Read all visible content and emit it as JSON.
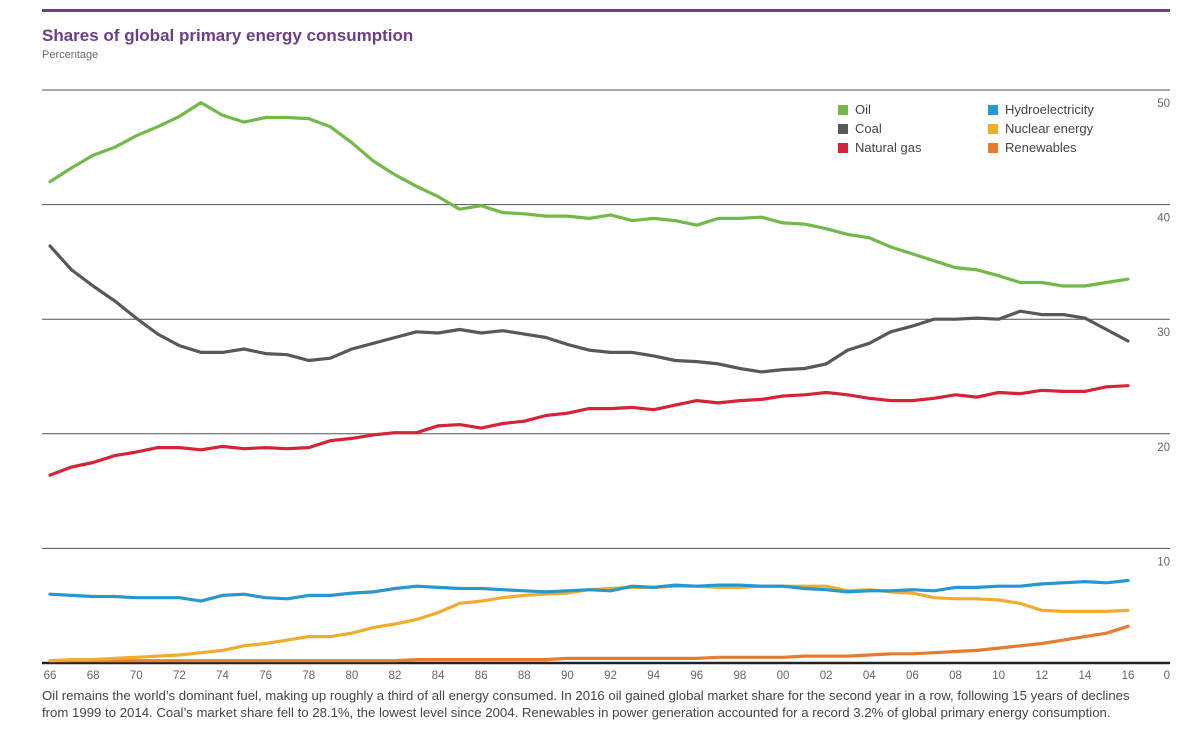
{
  "header": {
    "title": "Shares of global primary energy consumption",
    "subtitle": "Percentage"
  },
  "legend": [
    {
      "label": "Oil",
      "color": "#72b94a"
    },
    {
      "label": "Coal",
      "color": "#58585a"
    },
    {
      "label": "Natural gas",
      "color": "#d4243a"
    },
    {
      "label": "Hydroelectricity",
      "color": "#2797cf"
    },
    {
      "label": "Nuclear energy",
      "color": "#f0ad2d"
    },
    {
      "label": "Renewables",
      "color": "#e57c30"
    }
  ],
  "caption": "Oil remains the world’s dominant fuel, making up roughly a third of all energy consumed. In 2016 oil gained global market share for the second year in a row, following 15 years of declines from 1999 to 2014. Coal’s market share fell to 28.1%, the lowest level since 2004. Renewables in power generation accounted for a record 3.2% of global primary energy consumption.",
  "chart_data": {
    "type": "line",
    "title": "Shares of global primary energy consumption",
    "subtitle": "Percentage",
    "xlabel": "",
    "ylabel": "Percentage",
    "ylim": [
      0,
      50
    ],
    "xlim": [
      1966,
      2016
    ],
    "grid": true,
    "legend_position": "top-right",
    "y_ticks": [
      "0",
      "10",
      "20",
      "30",
      "40",
      "50"
    ],
    "x_tick_labels": [
      "66",
      "68",
      "70",
      "72",
      "74",
      "76",
      "78",
      "80",
      "82",
      "84",
      "86",
      "88",
      "90",
      "92",
      "94",
      "96",
      "98",
      "00",
      "02",
      "04",
      "06",
      "08",
      "10",
      "12",
      "14",
      "16"
    ],
    "x": [
      1966,
      1967,
      1968,
      1969,
      1970,
      1971,
      1972,
      1973,
      1974,
      1975,
      1976,
      1977,
      1978,
      1979,
      1980,
      1981,
      1982,
      1983,
      1984,
      1985,
      1986,
      1987,
      1988,
      1989,
      1990,
      1991,
      1992,
      1993,
      1994,
      1995,
      1996,
      1997,
      1998,
      1999,
      2000,
      2001,
      2002,
      2003,
      2004,
      2005,
      2006,
      2007,
      2008,
      2009,
      2010,
      2011,
      2012,
      2013,
      2014,
      2015,
      2016
    ],
    "series": [
      {
        "name": "Oil",
        "color": "#72b94a",
        "values": [
          42.0,
          43.2,
          44.3,
          45.0,
          46.0,
          46.8,
          47.7,
          48.9,
          47.8,
          47.2,
          47.6,
          47.6,
          47.5,
          46.8,
          45.4,
          43.8,
          42.6,
          41.6,
          40.7,
          39.6,
          39.9,
          39.3,
          39.2,
          39.0,
          39.0,
          38.8,
          39.1,
          38.6,
          38.8,
          38.6,
          38.2,
          38.8,
          38.8,
          38.9,
          38.4,
          38.3,
          37.9,
          37.4,
          37.1,
          36.3,
          35.7,
          35.1,
          34.5,
          34.3,
          33.8,
          33.2,
          33.2,
          32.9,
          32.9,
          33.2,
          33.5
        ]
      },
      {
        "name": "Coal",
        "color": "#58585a",
        "values": [
          36.4,
          34.3,
          32.9,
          31.6,
          30.1,
          28.7,
          27.7,
          27.1,
          27.1,
          27.4,
          27.0,
          26.9,
          26.4,
          26.6,
          27.4,
          27.9,
          28.4,
          28.9,
          28.8,
          29.1,
          28.8,
          29.0,
          28.7,
          28.4,
          27.8,
          27.3,
          27.1,
          27.1,
          26.8,
          26.4,
          26.3,
          26.1,
          25.7,
          25.4,
          25.6,
          25.7,
          26.1,
          27.3,
          27.9,
          28.9,
          29.4,
          30.0,
          30.0,
          30.1,
          30.0,
          30.7,
          30.4,
          30.4,
          30.1,
          29.1,
          28.1
        ]
      },
      {
        "name": "Natural gas",
        "color": "#d4243a",
        "values": [
          16.4,
          17.1,
          17.5,
          18.1,
          18.4,
          18.8,
          18.8,
          18.6,
          18.9,
          18.7,
          18.8,
          18.7,
          18.8,
          19.4,
          19.6,
          19.9,
          20.1,
          20.1,
          20.7,
          20.8,
          20.5,
          20.9,
          21.1,
          21.6,
          21.8,
          22.2,
          22.2,
          22.3,
          22.1,
          22.5,
          22.9,
          22.7,
          22.9,
          23.0,
          23.3,
          23.4,
          23.6,
          23.4,
          23.1,
          22.9,
          22.9,
          23.1,
          23.4,
          23.2,
          23.6,
          23.5,
          23.8,
          23.7,
          23.7,
          24.1,
          24.2
        ]
      },
      {
        "name": "Hydroelectricity",
        "color": "#2797cf",
        "values": [
          6.0,
          5.9,
          5.8,
          5.8,
          5.7,
          5.7,
          5.7,
          5.4,
          5.9,
          6.0,
          5.7,
          5.6,
          5.9,
          5.9,
          6.1,
          6.2,
          6.5,
          6.7,
          6.6,
          6.5,
          6.5,
          6.4,
          6.3,
          6.2,
          6.3,
          6.4,
          6.3,
          6.7,
          6.6,
          6.8,
          6.7,
          6.8,
          6.8,
          6.7,
          6.7,
          6.5,
          6.4,
          6.2,
          6.3,
          6.3,
          6.4,
          6.3,
          6.6,
          6.6,
          6.7,
          6.7,
          6.9,
          7.0,
          7.1,
          7.0,
          7.2
        ]
      },
      {
        "name": "Nuclear energy",
        "color": "#f0ad2d",
        "values": [
          0.2,
          0.3,
          0.3,
          0.4,
          0.5,
          0.6,
          0.7,
          0.9,
          1.1,
          1.5,
          1.7,
          2.0,
          2.3,
          2.3,
          2.6,
          3.1,
          3.4,
          3.8,
          4.4,
          5.2,
          5.4,
          5.7,
          5.9,
          6.0,
          6.1,
          6.4,
          6.5,
          6.6,
          6.6,
          6.7,
          6.7,
          6.6,
          6.6,
          6.7,
          6.7,
          6.7,
          6.7,
          6.3,
          6.4,
          6.2,
          6.1,
          5.7,
          5.6,
          5.6,
          5.5,
          5.2,
          4.6,
          4.5,
          4.5,
          4.5,
          4.6
        ]
      },
      {
        "name": "Renewables",
        "color": "#e57c30",
        "values": [
          0.2,
          0.2,
          0.2,
          0.2,
          0.2,
          0.2,
          0.2,
          0.2,
          0.2,
          0.2,
          0.2,
          0.2,
          0.2,
          0.2,
          0.2,
          0.2,
          0.2,
          0.3,
          0.3,
          0.3,
          0.3,
          0.3,
          0.3,
          0.3,
          0.4,
          0.4,
          0.4,
          0.4,
          0.4,
          0.4,
          0.4,
          0.5,
          0.5,
          0.5,
          0.5,
          0.6,
          0.6,
          0.6,
          0.7,
          0.8,
          0.8,
          0.9,
          1.0,
          1.1,
          1.3,
          1.5,
          1.7,
          2.0,
          2.3,
          2.6,
          3.2
        ]
      }
    ]
  }
}
